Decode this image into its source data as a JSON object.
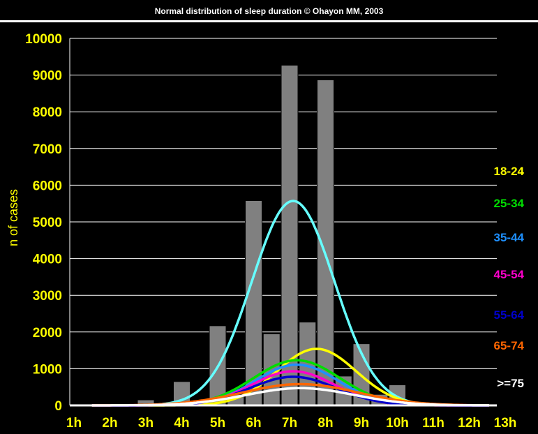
{
  "title": "Normal distribution of sleep duration © Ohayon MM, 2003",
  "chart_data": {
    "type": "bar",
    "ylabel": "n of cases",
    "xlabel": "",
    "ylim": [
      0,
      10000
    ],
    "yticks": [
      0,
      1000,
      2000,
      3000,
      4000,
      5000,
      6000,
      7000,
      8000,
      9000,
      10000
    ],
    "categories": [
      "1h",
      "2h",
      "3h",
      "4h",
      "5h",
      "6h",
      "7h",
      "8h",
      "9h",
      "10h",
      "11h",
      "12h",
      "13h"
    ],
    "grid": true,
    "bars": [
      {
        "x": 2.5,
        "value": 30
      },
      {
        "x": 3.0,
        "value": 150
      },
      {
        "x": 3.5,
        "value": 30
      },
      {
        "x": 4.0,
        "value": 650
      },
      {
        "x": 4.5,
        "value": 80
      },
      {
        "x": 5.0,
        "value": 2170
      },
      {
        "x": 5.5,
        "value": 300
      },
      {
        "x": 6.0,
        "value": 5580
      },
      {
        "x": 6.5,
        "value": 1950
      },
      {
        "x": 7.0,
        "value": 9270
      },
      {
        "x": 7.5,
        "value": 2270
      },
      {
        "x": 8.0,
        "value": 8870
      },
      {
        "x": 8.5,
        "value": 800
      },
      {
        "x": 9.0,
        "value": 1680
      },
      {
        "x": 9.5,
        "value": 300
      },
      {
        "x": 10.0,
        "value": 560
      },
      {
        "x": 10.5,
        "value": 30
      },
      {
        "x": 11.0,
        "value": 30
      }
    ],
    "curves": [
      {
        "name": "",
        "color": "#66ffff",
        "peak": 5570,
        "mean": 7.1,
        "sd": 1.15
      },
      {
        "name": "18-24",
        "color": "#ffff00",
        "peak": 1540,
        "mean": 7.75,
        "sd": 1.1
      },
      {
        "name": "25-34",
        "color": "#00dd00",
        "peak": 1230,
        "mean": 7.2,
        "sd": 1.2
      },
      {
        "name": "35-44",
        "color": "#1e90ff",
        "peak": 1110,
        "mean": 7.2,
        "sd": 1.15
      },
      {
        "name": "45-54",
        "color": "#ff00cc",
        "peak": 930,
        "mean": 7.1,
        "sd": 1.15
      },
      {
        "name": "55-64",
        "color": "#0000cc",
        "peak": 780,
        "mean": 7.1,
        "sd": 1.2
      },
      {
        "name": "65-74",
        "color": "#ff6600",
        "peak": 580,
        "mean": 7.3,
        "sd": 1.6
      },
      {
        "name": ">=75",
        "color": "#ffffff",
        "peak": 470,
        "mean": 7.3,
        "sd": 1.5
      }
    ],
    "legend": [
      {
        "label": "18-24",
        "color": "#ffff00"
      },
      {
        "label": "25-34",
        "color": "#00dd00"
      },
      {
        "label": "35-44",
        "color": "#1e90ff"
      },
      {
        "label": "45-54",
        "color": "#ff00cc"
      },
      {
        "label": "55-64",
        "color": "#0000cc"
      },
      {
        "label": "65-74",
        "color": "#ff6600"
      },
      {
        "label": ">=75",
        "color": "#ffffff"
      }
    ],
    "legend_position": "right"
  }
}
